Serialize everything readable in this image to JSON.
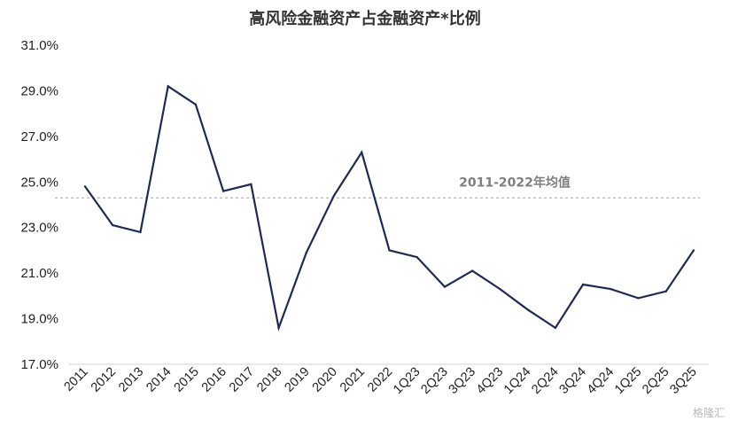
{
  "chart_data": {
    "type": "line",
    "title": "高风险金融资产占金融资产*比例",
    "xlabel": "",
    "ylabel": "",
    "categories": [
      "2011",
      "2012",
      "2013",
      "2014",
      "2015",
      "2016",
      "2017",
      "2018",
      "2019",
      "2020",
      "2021",
      "2022",
      "1Q23",
      "2Q23",
      "3Q23",
      "4Q23",
      "1Q24",
      "2Q24",
      "3Q24",
      "4Q24",
      "1Q25",
      "2Q25",
      "3Q25"
    ],
    "series": [
      {
        "values": [
          24.8,
          23.1,
          22.8,
          29.2,
          28.4,
          24.6,
          24.9,
          18.6,
          21.9,
          24.4,
          26.3,
          22.0,
          21.7,
          20.4,
          21.1,
          20.3,
          19.4,
          18.6,
          20.5,
          20.3,
          19.9,
          20.2,
          22.0
        ],
        "color": "#1f2a55"
      }
    ],
    "ylim": [
      17.0,
      31.0
    ],
    "y_ticks": [
      "17.0%",
      "19.0%",
      "21.0%",
      "23.0%",
      "25.0%",
      "27.0%",
      "29.0%",
      "31.0%"
    ],
    "y_tick_values": [
      17,
      19,
      21,
      23,
      25,
      27,
      29,
      31
    ],
    "reference_line": {
      "label": "2011-2022年均值",
      "value": 24.3,
      "style": "dashed",
      "color": "#a6a6a6"
    },
    "grid": false,
    "legend": "none",
    "watermark": "格隆汇"
  }
}
